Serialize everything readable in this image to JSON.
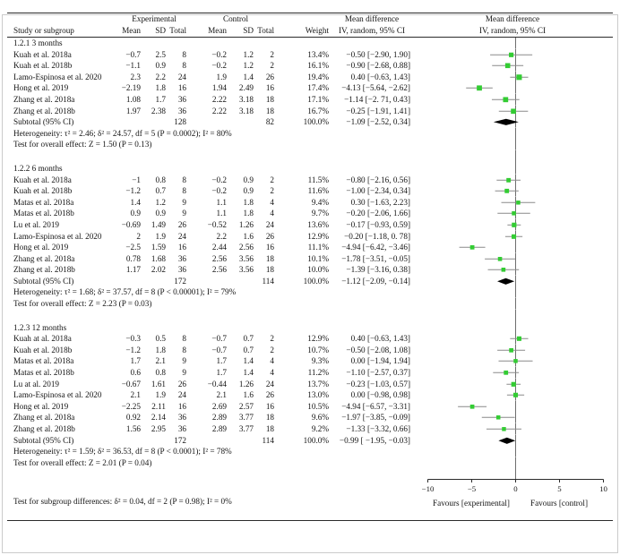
{
  "header": {
    "study_col": "Study or subgroup",
    "group_experimental": "Experimental",
    "group_control": "Control",
    "cols": {
      "mean": "Mean",
      "sd": "SD",
      "total": "Total"
    },
    "weight_col": "Weight",
    "md_title": "Mean difference",
    "md_sub": "IV, random, 95% CI"
  },
  "axis": {
    "min": -10,
    "max": 10,
    "ticks": [
      -10,
      -5,
      0,
      5,
      10
    ],
    "favours_left": "Favours [experimental]",
    "favours_right": "Favours [control]"
  },
  "footer": {
    "subgroup_test": "Test for subgroup differences: δ² = 0.04, df = 2 (P = 0.98); I² = 0%"
  },
  "colors": {
    "marker_green": "#33cc33",
    "diamond_black": "#000000",
    "ci_gray": "#8a8a8a",
    "axis_gray": "#6e6e6e",
    "rule": "#2b2b2b"
  },
  "chart_data": {
    "type": "forest",
    "effect_measure": "Mean difference, IV, random, 95% CI",
    "x_axis": {
      "min": -10,
      "max": 10,
      "ticks": [
        -10,
        -5,
        0,
        5,
        10
      ]
    },
    "subgroups": [
      {
        "label": "1.2.1 3 months",
        "studies": [
          {
            "study": "Kuah et al. 2018a",
            "e_mean": "−0.7",
            "e_sd": "2.5",
            "e_total": "8",
            "c_mean": "−0.2",
            "c_sd": "1.2",
            "c_total": "2",
            "weight": "13.4%",
            "ci": "−0.50 [−2.90, 1.90]",
            "md": -0.5,
            "lo": -2.9,
            "hi": 1.9
          },
          {
            "study": "Kuah et al. 2018b",
            "e_mean": "−1.1",
            "e_sd": "0.9",
            "e_total": "8",
            "c_mean": "−0.2",
            "c_sd": "1.2",
            "c_total": "2",
            "weight": "16.1%",
            "ci": "−0.90 [−2.68, 0.88]",
            "md": -0.9,
            "lo": -2.68,
            "hi": 0.88
          },
          {
            "study": "Lamo-Espinosa et al. 2020",
            "e_mean": "2.3",
            "e_sd": "2.2",
            "e_total": "24",
            "c_mean": "1.9",
            "c_sd": "1.4",
            "c_total": "26",
            "weight": "19.4%",
            "ci": "0.40 [−0.63, 1.43]",
            "md": 0.4,
            "lo": -0.63,
            "hi": 1.43
          },
          {
            "study": "Hong et al. 2019",
            "e_mean": "−2.19",
            "e_sd": "1.8",
            "e_total": "16",
            "c_mean": "1.94",
            "c_sd": "2.49",
            "c_total": "16",
            "weight": "17.4%",
            "ci": "−4.13 [−5.64, −2.62]",
            "md": -4.13,
            "lo": -5.64,
            "hi": -2.62
          },
          {
            "study": "Zhang et al. 2018a",
            "e_mean": "1.08",
            "e_sd": "1.7",
            "e_total": "36",
            "c_mean": "2.22",
            "c_sd": "3.18",
            "c_total": "18",
            "weight": "17.1%",
            "ci": "−1.14 [−2. 71, 0.43]",
            "md": -1.14,
            "lo": -2.71,
            "hi": 0.43
          },
          {
            "study": "Zhang et al. 2018b",
            "e_mean": "1.97",
            "e_sd": "2.38",
            "e_total": "36",
            "c_mean": "2.22",
            "c_sd": "3.18",
            "c_total": "18",
            "weight": "16.7%",
            "ci": "−0.25 [−1.91, 1.41]",
            "md": -0.25,
            "lo": -1.91,
            "hi": 1.41
          }
        ],
        "subtotal": {
          "label": "Subtotal (95% CI)",
          "e_total": "128",
          "c_total": "82",
          "weight": "100.0%",
          "ci": "−1.09 [−2.52, 0.34]",
          "md": -1.09,
          "lo": -2.52,
          "hi": 0.34
        },
        "heterogeneity": "Heterogeneity: τ² = 2.46; δ² = 24.57, df = 5 (P = 0.0002); I² = 80%",
        "overall_effect": "Test for overall effect:  Z = 1.50 (P = 0.13)"
      },
      {
        "label": "1.2.2 6 months",
        "studies": [
          {
            "study": "Kuah et al. 2018a",
            "e_mean": "−1",
            "e_sd": "0.8",
            "e_total": "8",
            "c_mean": "−0.2",
            "c_sd": "0.9",
            "c_total": "2",
            "weight": "11.5%",
            "ci": "−0.80 [−2.16, 0.56]",
            "md": -0.8,
            "lo": -2.16,
            "hi": 0.56
          },
          {
            "study": "Kuah et al. 2018b",
            "e_mean": "−1.2",
            "e_sd": "0.7",
            "e_total": "8",
            "c_mean": "−0.2",
            "c_sd": "0.9",
            "c_total": "2",
            "weight": "11.6%",
            "ci": "−1.00 [−2.34, 0.34]",
            "md": -1.0,
            "lo": -2.34,
            "hi": 0.34
          },
          {
            "study": "Matas et al. 2018a",
            "e_mean": "1.4",
            "e_sd": "1.2",
            "e_total": "9",
            "c_mean": "1.1",
            "c_sd": "1.8",
            "c_total": "4",
            "weight": "9.4%",
            "ci": "0.30 [−1.63, 2.23]",
            "md": 0.3,
            "lo": -1.63,
            "hi": 2.23
          },
          {
            "study": "Matas et al. 2018b",
            "e_mean": "0.9",
            "e_sd": "0.9",
            "e_total": "9",
            "c_mean": "1.1",
            "c_sd": "1.8",
            "c_total": "4",
            "weight": "9.7%",
            "ci": "−0.20 [−2.06, 1.66]",
            "md": -0.2,
            "lo": -2.06,
            "hi": 1.66
          },
          {
            "study": "Lu et al. 2019",
            "e_mean": "−0.69",
            "e_sd": "1.49",
            "e_total": "26",
            "c_mean": "−0.52",
            "c_sd": "1.26",
            "c_total": "24",
            "weight": "13.6%",
            "ci": "−0.17 [−0.93, 0.59]",
            "md": -0.17,
            "lo": -0.93,
            "hi": 0.59
          },
          {
            "study": "Lamo-Espinosa et al. 2020",
            "e_mean": "2",
            "e_sd": "1.9",
            "e_total": "24",
            "c_mean": "2.2",
            "c_sd": "1.6",
            "c_total": "26",
            "weight": "12.9%",
            "ci": "−0.20 [−1.18, 0. 78]",
            "md": -0.2,
            "lo": -1.18,
            "hi": 0.78
          },
          {
            "study": "Hong et al. 2019",
            "e_mean": "−2.5",
            "e_sd": "1.59",
            "e_total": "16",
            "c_mean": "2.44",
            "c_sd": "2.56",
            "c_total": "16",
            "weight": "11.1%",
            "ci": "−4.94 [−6.42, −3.46]",
            "md": -4.94,
            "lo": -6.42,
            "hi": -3.46
          },
          {
            "study": "Zhang et al. 2018a",
            "e_mean": "0.78",
            "e_sd": "1.68",
            "e_total": "36",
            "c_mean": "2.56",
            "c_sd": "3.56",
            "c_total": "18",
            "weight": "10.1%",
            "ci": "−1.78 [−3.51, −0.05]",
            "md": -1.78,
            "lo": -3.51,
            "hi": -0.05
          },
          {
            "study": "Zhang et al. 2018b",
            "e_mean": "1.17",
            "e_sd": "2.02",
            "e_total": "36",
            "c_mean": "2.56",
            "c_sd": "3.56",
            "c_total": "18",
            "weight": "10.0%",
            "ci": "−1.39 [−3.16, 0.38]",
            "md": -1.39,
            "lo": -3.16,
            "hi": 0.38
          }
        ],
        "subtotal": {
          "label": "Subtotal (95% CI)",
          "e_total": "172",
          "c_total": "114",
          "weight": "100.0%",
          "ci": "−1.12 [−2.09, −0.14]",
          "md": -1.12,
          "lo": -2.09,
          "hi": -0.14
        },
        "heterogeneity": "Heterogeneity: τ² = 1.68; δ² = 37.57, df = 8 (P < 0.00001); I² = 79%",
        "overall_effect": "Test for overall effect:  Z = 2.23 (P = 0.03)"
      },
      {
        "label": "1.2.3 12 months",
        "studies": [
          {
            "study": "Kuah at al. 2018a",
            "e_mean": "−0.3",
            "e_sd": "0.5",
            "e_total": "8",
            "c_mean": "−0.7",
            "c_sd": "0.7",
            "c_total": "2",
            "weight": "12.9%",
            "ci": "0.40 [−0.63, 1.43]",
            "md": 0.4,
            "lo": -0.63,
            "hi": 1.43
          },
          {
            "study": "Kuah et al. 2018b",
            "e_mean": "−1.2",
            "e_sd": "1.8",
            "e_total": "8",
            "c_mean": "−0.7",
            "c_sd": "0.7",
            "c_total": "2",
            "weight": "10.7%",
            "ci": "−0.50 [−2.08, 1.08]",
            "md": -0.5,
            "lo": -2.08,
            "hi": 1.08
          },
          {
            "study": "Matas et al. 2018a",
            "e_mean": "1.7",
            "e_sd": "2.1",
            "e_total": "9",
            "c_mean": "1.7",
            "c_sd": "1.4",
            "c_total": "4",
            "weight": "9.3%",
            "ci": "0.00 [−1.94, 1.94]",
            "md": 0.0,
            "lo": -1.94,
            "hi": 1.94
          },
          {
            "study": "Matas et al. 2018b",
            "e_mean": "0.6",
            "e_sd": "0.8",
            "e_total": "9",
            "c_mean": "1.7",
            "c_sd": "1.4",
            "c_total": "4",
            "weight": "11.2%",
            "ci": "−1.10 [−2.57, 0.37]",
            "md": -1.1,
            "lo": -2.57,
            "hi": 0.37
          },
          {
            "study": "Lu at al. 2019",
            "e_mean": "−0.67",
            "e_sd": "1.61",
            "e_total": "26",
            "c_mean": "−0.44",
            "c_sd": "1.26",
            "c_total": "24",
            "weight": "13.7%",
            "ci": "−0.23 [−1.03, 0.57]",
            "md": -0.23,
            "lo": -1.03,
            "hi": 0.57
          },
          {
            "study": "Lamo-Espinosa et al. 2020",
            "e_mean": "2.1",
            "e_sd": "1.9",
            "e_total": "24",
            "c_mean": "2.1",
            "c_sd": "1.6",
            "c_total": "26",
            "weight": "13.0%",
            "ci": "0.00 [−0.98, 0.98]",
            "md": 0.0,
            "lo": -0.98,
            "hi": 0.98
          },
          {
            "study": "Hong et al. 2019",
            "e_mean": "−2.25",
            "e_sd": "2.11",
            "e_total": "16",
            "c_mean": "2.69",
            "c_sd": "2.57",
            "c_total": "16",
            "weight": "10.5%",
            "ci": "−4.94 [−6.57, −3.31]",
            "md": -4.94,
            "lo": -6.57,
            "hi": -3.31
          },
          {
            "study": "Zhang et al. 2018a",
            "e_mean": "0.92",
            "e_sd": "2.14",
            "e_total": "36",
            "c_mean": "2.89",
            "c_sd": "3.77",
            "c_total": "18",
            "weight": "9.6%",
            "ci": "−1.97 [−3.85, −0.09]",
            "md": -1.97,
            "lo": -3.85,
            "hi": -0.09
          },
          {
            "study": "Zhang et al. 2018b",
            "e_mean": "1.56",
            "e_sd": "2.95",
            "e_total": "36",
            "c_mean": "2.89",
            "c_sd": "3.77",
            "c_total": "18",
            "weight": "9.2%",
            "ci": "−1.33 [−3.32, 0.66]",
            "md": -1.33,
            "lo": -3.32,
            "hi": 0.66
          }
        ],
        "subtotal": {
          "label": "Subtotal (95% CI)",
          "e_total": "172",
          "c_total": "114",
          "weight": "100.0%",
          "ci": "−0.99 [ −1.95, −0.03]",
          "md": -0.99,
          "lo": -1.95,
          "hi": -0.03
        },
        "heterogeneity": "Heterogeneity: τ² = 1.59; δ² = 36.53, df = 8 (P < 0.0001); I² = 78%",
        "overall_effect": "Test for overall effect:  Z = 2.01 (P = 0.04)"
      }
    ]
  }
}
